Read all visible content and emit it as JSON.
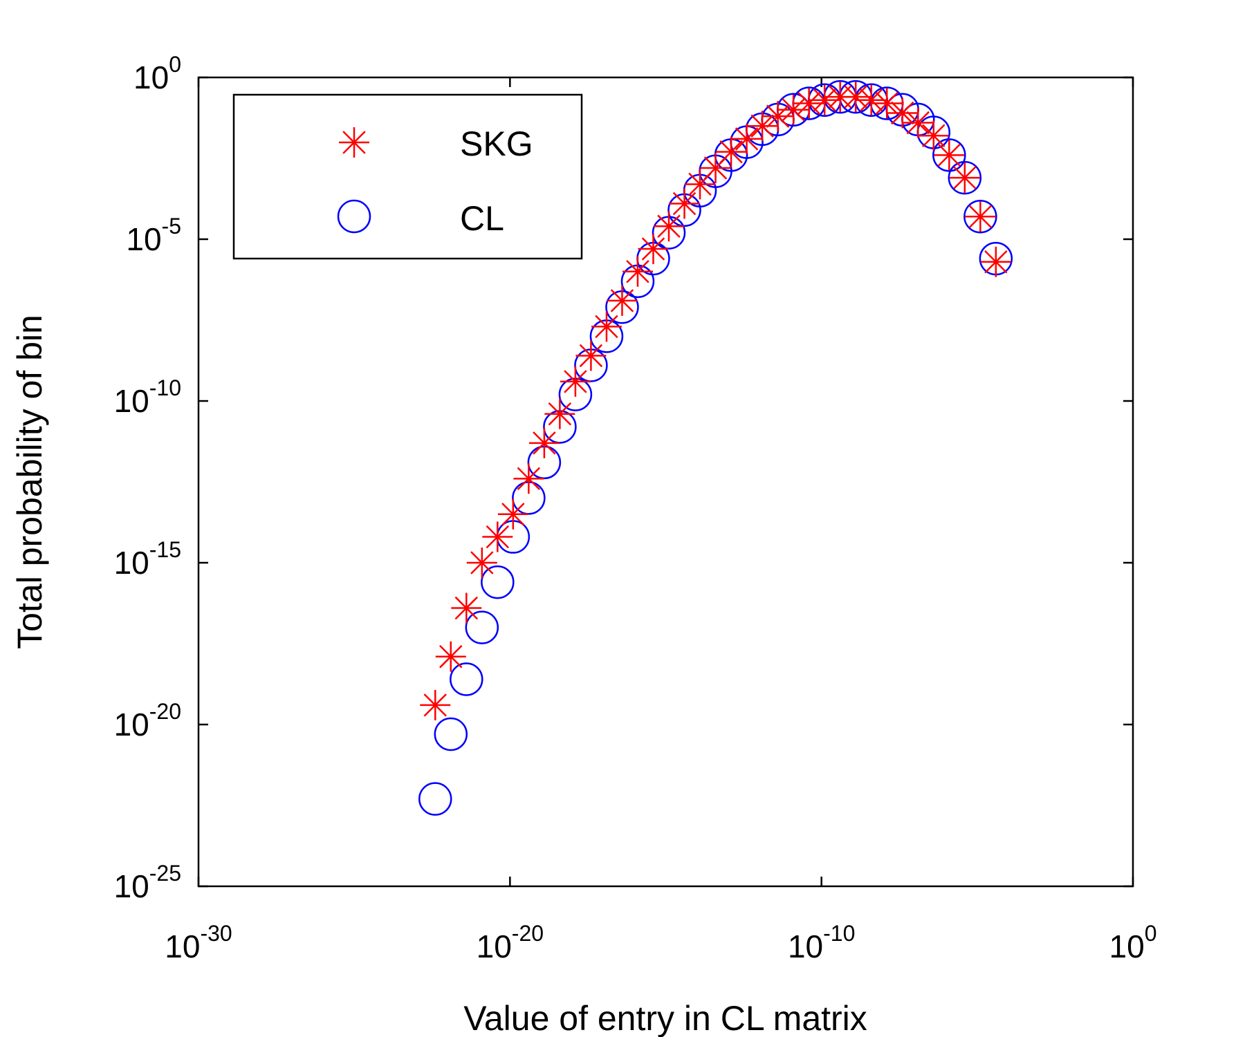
{
  "chart_data": {
    "type": "scatter",
    "title": "",
    "xlabel": "Value of entry in CL matrix",
    "ylabel": "Total probability of bin",
    "x_scale": "log",
    "y_scale": "log",
    "xlim_exp": [
      -30,
      0
    ],
    "ylim_exp": [
      -25,
      0
    ],
    "x_ticks": [
      {
        "base": "10",
        "exp": "-30",
        "value_exp": -30
      },
      {
        "base": "10",
        "exp": "-20",
        "value_exp": -20
      },
      {
        "base": "10",
        "exp": "-10",
        "value_exp": -10
      },
      {
        "base": "10",
        "exp": "0",
        "value_exp": 0
      }
    ],
    "y_ticks": [
      {
        "base": "10",
        "exp": "0",
        "value_exp": 0
      },
      {
        "base": "10",
        "exp": "-5",
        "value_exp": -5
      },
      {
        "base": "10",
        "exp": "-10",
        "value_exp": -10
      },
      {
        "base": "10",
        "exp": "-15",
        "value_exp": -15
      },
      {
        "base": "10",
        "exp": "-20",
        "value_exp": -20
      },
      {
        "base": "10",
        "exp": "-25",
        "value_exp": -25
      }
    ],
    "legend_position": "top-left",
    "series": [
      {
        "name": "SKG",
        "marker": "asterisk",
        "color": "#ff0000",
        "x_exp": [
          -22.4,
          -21.9,
          -21.4,
          -20.9,
          -20.4,
          -19.9,
          -19.4,
          -18.9,
          -18.4,
          -17.9,
          -17.4,
          -16.9,
          -16.4,
          -15.9,
          -15.4,
          -14.9,
          -14.4,
          -13.9,
          -13.4,
          -12.9,
          -12.4,
          -11.9,
          -11.4,
          -10.9,
          -10.4,
          -9.9,
          -9.4,
          -8.9,
          -8.4,
          -7.9,
          -7.4,
          -6.9,
          -6.4,
          -5.9,
          -5.4,
          -4.9,
          -4.4
        ],
        "y_exp": [
          -19.4,
          -17.9,
          -16.4,
          -15.0,
          -14.2,
          -13.5,
          -12.4,
          -11.3,
          -10.4,
          -9.4,
          -8.6,
          -7.7,
          -6.9,
          -6.0,
          -5.3,
          -4.6,
          -3.9,
          -3.3,
          -2.8,
          -2.3,
          -1.9,
          -1.5,
          -1.2,
          -1.0,
          -0.8,
          -0.7,
          -0.6,
          -0.6,
          -0.7,
          -0.8,
          -1.1,
          -1.4,
          -1.8,
          -2.4,
          -3.1,
          -4.3,
          -5.7
        ]
      },
      {
        "name": "CL",
        "marker": "circle",
        "color": "#0000ff",
        "x_exp": [
          -22.4,
          -21.9,
          -21.4,
          -20.9,
          -20.4,
          -19.9,
          -19.4,
          -18.9,
          -18.4,
          -17.9,
          -17.4,
          -16.9,
          -16.4,
          -15.9,
          -15.4,
          -14.9,
          -14.4,
          -13.9,
          -13.4,
          -12.9,
          -12.4,
          -11.9,
          -11.4,
          -10.9,
          -10.4,
          -9.9,
          -9.4,
          -8.9,
          -8.4,
          -7.9,
          -7.4,
          -6.9,
          -6.4,
          -5.9,
          -5.4,
          -4.9,
          -4.4
        ],
        "y_exp": [
          -22.3,
          -20.3,
          -18.6,
          -17.0,
          -15.6,
          -14.2,
          -13.0,
          -11.9,
          -10.8,
          -9.8,
          -8.9,
          -8.0,
          -7.1,
          -6.3,
          -5.6,
          -4.8,
          -4.1,
          -3.5,
          -2.9,
          -2.4,
          -2.0,
          -1.6,
          -1.3,
          -1.0,
          -0.8,
          -0.7,
          -0.6,
          -0.6,
          -0.7,
          -0.8,
          -1.0,
          -1.3,
          -1.7,
          -2.4,
          -3.1,
          -4.3,
          -5.6
        ]
      }
    ]
  }
}
